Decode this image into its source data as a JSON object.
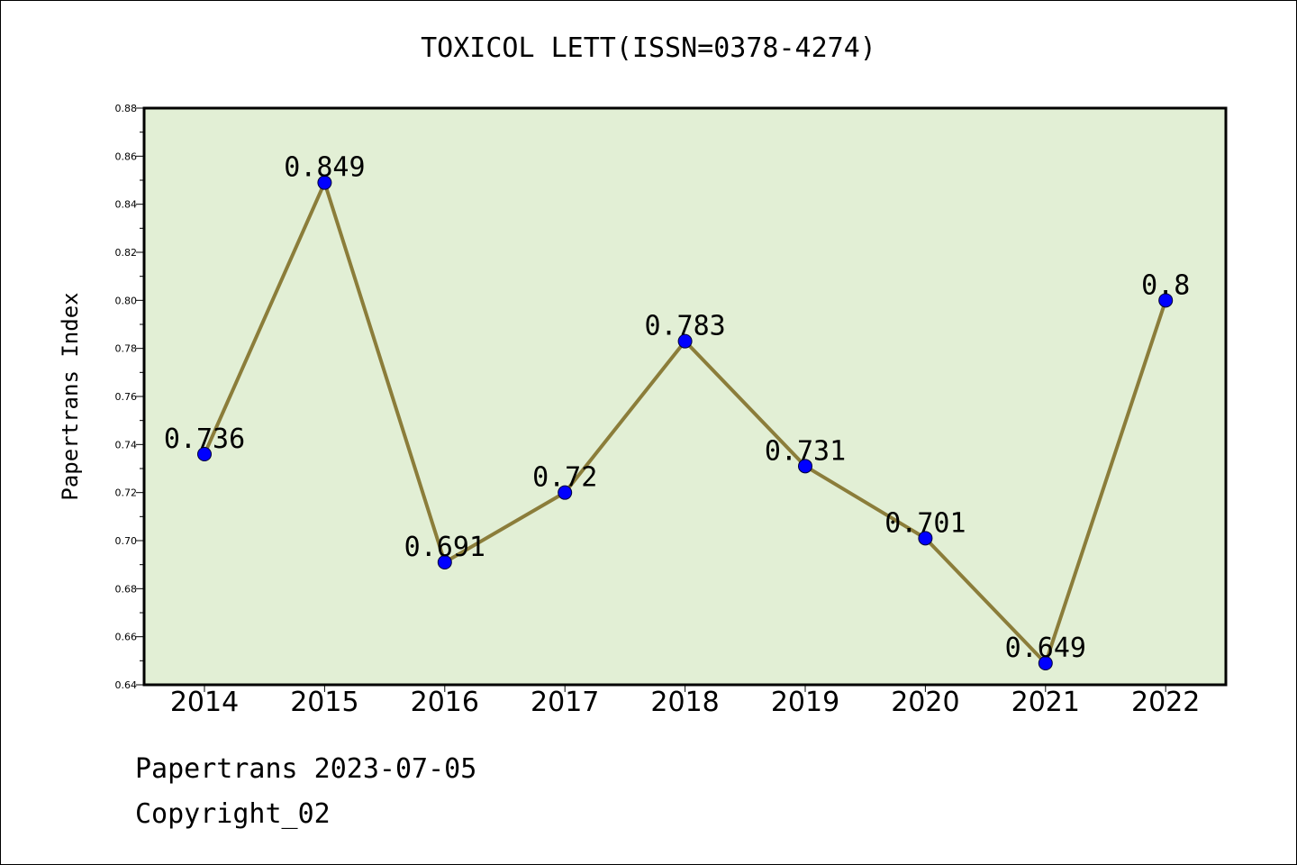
{
  "footer": {
    "line1": "Papertrans 2023-07-05",
    "line2": "Copyright_02"
  },
  "chart_data": {
    "type": "line",
    "title": "TOXICOL LETT(ISSN=0378-4274)",
    "ylabel": "Papertrans Index",
    "xlabel": "",
    "categories": [
      "2014",
      "2015",
      "2016",
      "2017",
      "2018",
      "2019",
      "2020",
      "2021",
      "2022"
    ],
    "series": [
      {
        "values": [
          0.736,
          0.849,
          0.691,
          0.72,
          0.783,
          0.731,
          0.701,
          0.649,
          0.8
        ],
        "labels": [
          "0.736",
          "0.849",
          "0.691",
          "0.72",
          "0.783",
          "0.731",
          "0.701",
          "0.649",
          "0.8"
        ]
      }
    ],
    "ylim": [
      0.64,
      0.88
    ],
    "yticks": [
      "0.64",
      "0.66",
      "0.68",
      "0.70",
      "0.72",
      "0.74",
      "0.76",
      "0.78",
      "0.80",
      "0.82",
      "0.84",
      "0.86",
      "0.88"
    ],
    "grid": false,
    "colors": {
      "plot_background": "#e2efd5",
      "line": "#8b7d3a",
      "marker": "#0000ff"
    }
  }
}
